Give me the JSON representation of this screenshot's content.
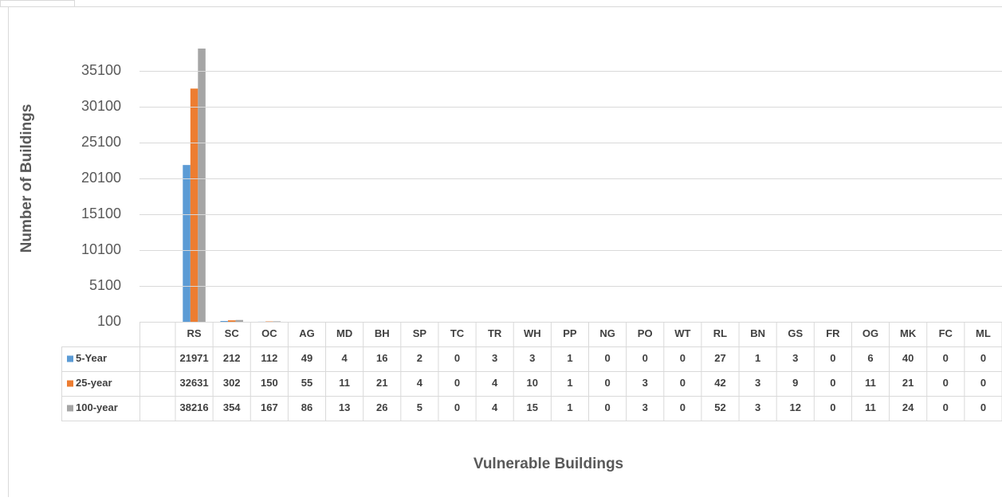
{
  "chart_data": {
    "type": "bar",
    "y_label": "Number of Buildings",
    "x_label": "Vulnerable Buildings",
    "categories": [
      "RS",
      "SC",
      "OC",
      "AG",
      "MD",
      "BH",
      "SP",
      "TC",
      "TR",
      "WH",
      "PP",
      "NG",
      "PO",
      "WT",
      "RL",
      "BN",
      "GS",
      "FR",
      "OG",
      "MK",
      "FC",
      "ML"
    ],
    "series": [
      {
        "name": "5-Year",
        "color": "#5b9bd5",
        "values": [
          21971,
          212,
          112,
          49,
          4,
          16,
          2,
          0,
          3,
          3,
          1,
          0,
          0,
          0,
          27,
          1,
          3,
          0,
          6,
          40,
          0,
          0
        ]
      },
      {
        "name": "25-year",
        "color": "#ed7d31",
        "values": [
          32631,
          302,
          150,
          55,
          11,
          21,
          4,
          0,
          4,
          10,
          1,
          0,
          3,
          0,
          42,
          3,
          9,
          0,
          11,
          21,
          0,
          0
        ]
      },
      {
        "name": "100-year",
        "color": "#a5a5a5",
        "values": [
          38216,
          354,
          167,
          86,
          13,
          26,
          5,
          0,
          4,
          15,
          1,
          0,
          3,
          0,
          52,
          3,
          12,
          0,
          11,
          24,
          0,
          0
        ]
      }
    ],
    "ylim": [
      100,
      40100
    ],
    "yticks": [
      100,
      5100,
      10100,
      15100,
      20100,
      25100,
      30100,
      35100
    ],
    "grid": true
  }
}
